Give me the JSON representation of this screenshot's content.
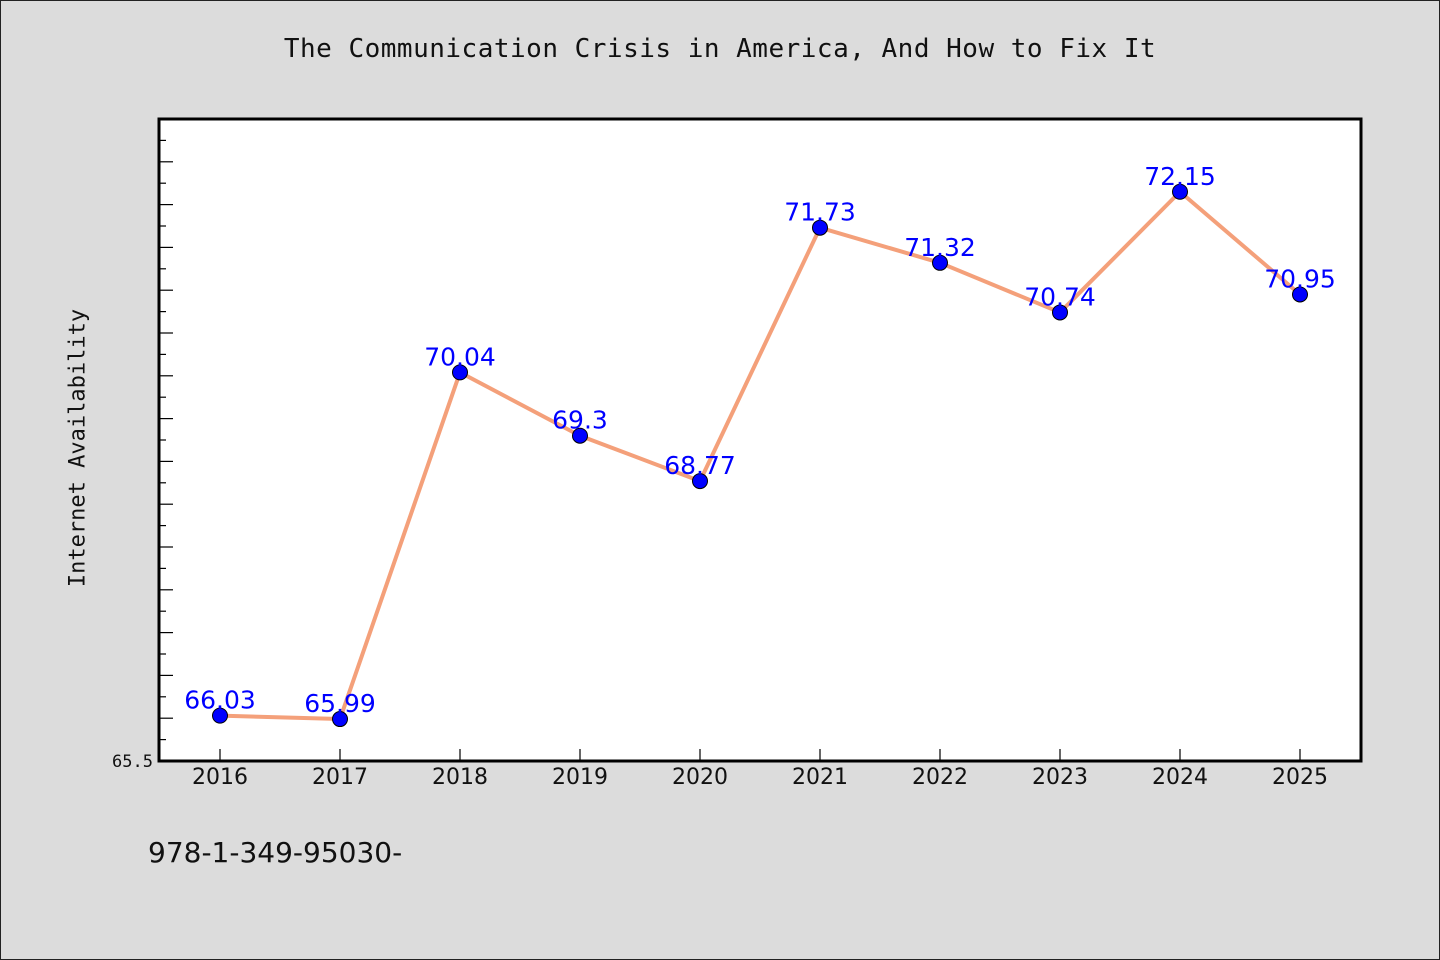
{
  "header": {
    "title": "The Communication Crisis in America, And How to Fix It"
  },
  "footer": {
    "code": "978-1-349-95030-"
  },
  "colors": {
    "background": "#dcdcdc",
    "plot_background": "#ffffff",
    "line": "#f4a07a",
    "marker": "#0000ff",
    "data_label": "#0000ff"
  },
  "chart_data": {
    "type": "line",
    "title": "The Communication Crisis in America, And How to Fix It",
    "xlabel": "",
    "ylabel": "Internet Availability",
    "categories": [
      "2016",
      "2017",
      "2018",
      "2019",
      "2020",
      "2021",
      "2022",
      "2023",
      "2024",
      "2025"
    ],
    "series": [
      {
        "values": [
          66.03,
          65.99,
          70.04,
          69.3,
          68.77,
          71.73,
          71.32,
          70.74,
          72.15,
          70.95
        ]
      }
    ],
    "data_labels": [
      "66.03",
      "65.99",
      "70.04",
      "69.3",
      "68.77",
      "71.73",
      "71.32",
      "70.74",
      "72.15",
      "70.95"
    ],
    "y_tick_labels": [
      "65.5"
    ],
    "ylim": [
      65.5,
      73.0
    ],
    "grid": false,
    "legend": "none"
  }
}
